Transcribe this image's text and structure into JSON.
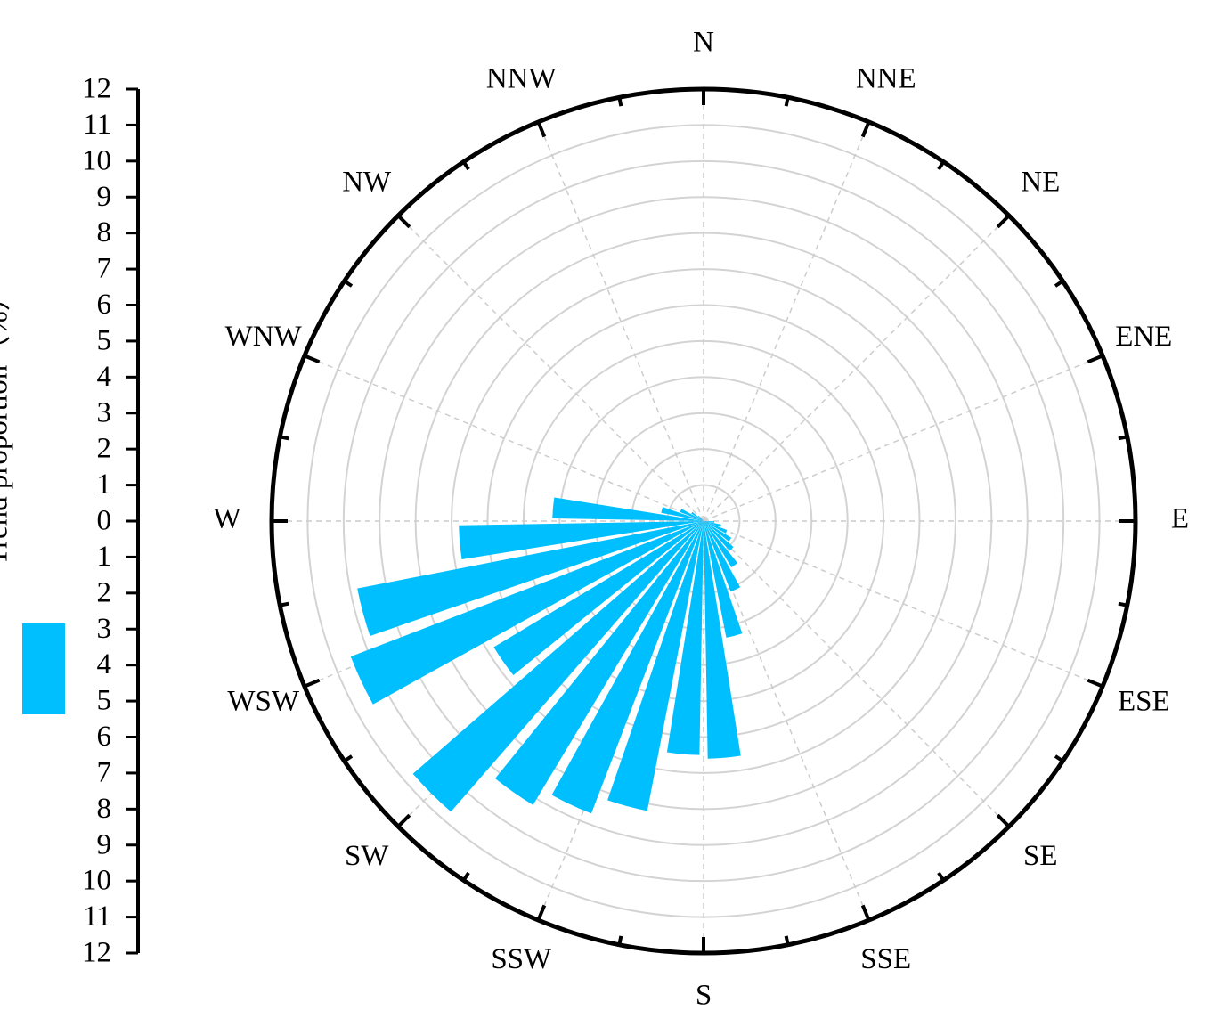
{
  "chart_data": {
    "type": "polar-bar",
    "direction_labels": [
      "N",
      "NNE",
      "NE",
      "ENE",
      "E",
      "ESE",
      "SE",
      "SSE",
      "S",
      "SSW",
      "SW",
      "WSW",
      "W",
      "WNW",
      "NW",
      "NNW"
    ],
    "x": [
      5,
      15,
      25,
      35,
      45,
      55,
      65,
      75,
      85,
      95,
      105,
      115,
      125,
      135,
      145,
      155,
      165,
      175,
      185,
      195,
      205,
      215,
      225,
      235,
      245,
      255,
      265,
      275,
      285,
      295,
      305,
      315,
      325,
      335,
      345,
      355
    ],
    "series": [
      {
        "name": "Trend proportion（%）",
        "color": "#00bfff",
        "values": [
          0,
          0,
          0,
          0,
          0,
          0,
          0,
          0,
          0,
          0.3,
          0.5,
          0.7,
          0.9,
          1.1,
          1.5,
          2.1,
          3.3,
          6.6,
          6.5,
          8.2,
          8.7,
          9.2,
          10.7,
          6.8,
          10.5,
          9.8,
          6.8,
          4.2,
          1.2,
          0.7,
          0.4,
          0.2,
          0,
          0,
          0,
          0
        ]
      }
    ],
    "ylim": [
      0,
      12
    ],
    "yticks": [
      0,
      1,
      2,
      3,
      4,
      5,
      6,
      7,
      8,
      9,
      10,
      11,
      12
    ],
    "grid": true
  }
}
